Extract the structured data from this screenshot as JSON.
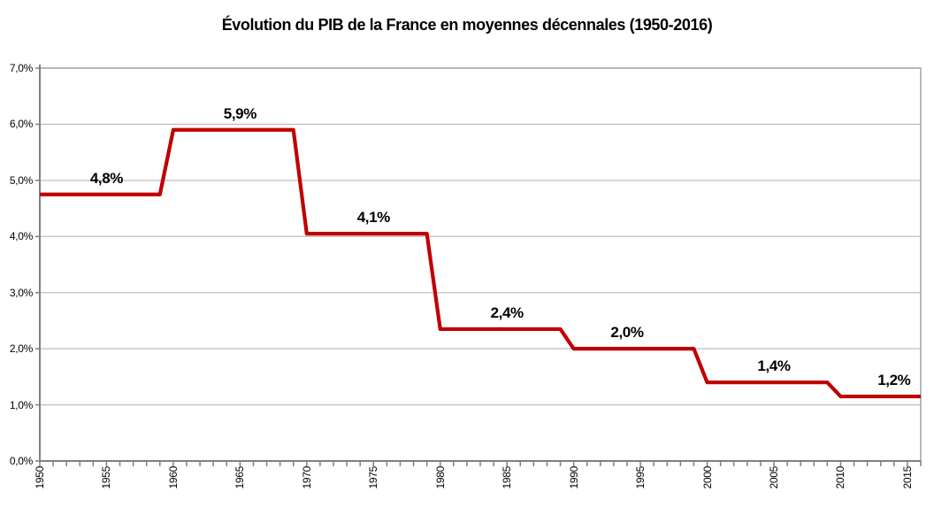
{
  "chart_data": {
    "type": "line",
    "subtype": "step",
    "title": "Évolution du PIB de la France en moyennes décennales (1950-2016)",
    "xlabel": "",
    "ylabel": "",
    "x_range": [
      1950,
      2016
    ],
    "x_minor_tick_step": 1,
    "ylim": [
      0,
      7
    ],
    "grid": "horizontal",
    "legend": "none",
    "colors": {
      "line": "#C00000",
      "gridline": "#BFBFBF",
      "plot_border": "#A6A6A6",
      "axis": "#808080",
      "text": "#000000",
      "background": "#FFFFFF"
    },
    "y_ticks": [
      {
        "label": "7,0%",
        "value": 7
      },
      {
        "label": "6,0%",
        "value": 6
      },
      {
        "label": "5,0%",
        "value": 5
      },
      {
        "label": "4,0%",
        "value": 4
      },
      {
        "label": "3,0%",
        "value": 3
      },
      {
        "label": "2,0%",
        "value": 2
      },
      {
        "label": "1,0%",
        "value": 1
      },
      {
        "label": "0,0%",
        "value": 0
      }
    ],
    "x_tick_labels": [
      {
        "label": "1950",
        "year": 1950
      },
      {
        "label": "1955",
        "year": 1955
      },
      {
        "label": "1960",
        "year": 1960
      },
      {
        "label": "1965",
        "year": 1965
      },
      {
        "label": "1970",
        "year": 1970
      },
      {
        "label": "1975",
        "year": 1975
      },
      {
        "label": "1980",
        "year": 1980
      },
      {
        "label": "1985",
        "year": 1985
      },
      {
        "label": "1990",
        "year": 1990
      },
      {
        "label": "1995",
        "year": 1995
      },
      {
        "label": "2000",
        "year": 2000
      },
      {
        "label": "2005",
        "year": 2005
      },
      {
        "label": "2010",
        "year": 2010
      },
      {
        "label": "2015",
        "year": 2015
      }
    ],
    "segments": [
      {
        "start_year": 1950,
        "end_year": 1959,
        "value": 4.75,
        "label": "4,8%",
        "label_year": 1955
      },
      {
        "start_year": 1960,
        "end_year": 1969,
        "value": 5.9,
        "label": "5,9%",
        "label_year": 1965
      },
      {
        "start_year": 1970,
        "end_year": 1979,
        "value": 4.05,
        "label": "4,1%",
        "label_year": 1975
      },
      {
        "start_year": 1980,
        "end_year": 1989,
        "value": 2.35,
        "label": "2,4%",
        "label_year": 1985
      },
      {
        "start_year": 1990,
        "end_year": 1999,
        "value": 2.0,
        "label": "2,0%",
        "label_year": 1994
      },
      {
        "start_year": 2000,
        "end_year": 2009,
        "value": 1.4,
        "label": "1,4%",
        "label_year": 2005
      },
      {
        "start_year": 2010,
        "end_year": 2016,
        "value": 1.15,
        "label": "1,2%",
        "label_year": 2014
      }
    ]
  }
}
